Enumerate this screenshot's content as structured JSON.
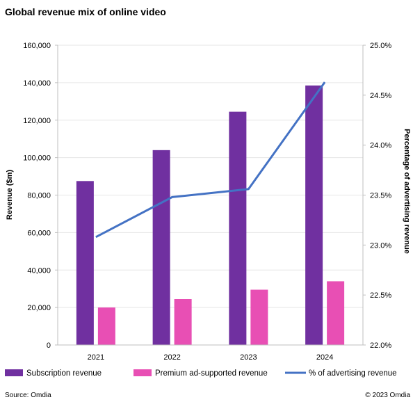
{
  "chart_data": {
    "type": "bar",
    "title": "Global revenue mix of online video",
    "categories": [
      "2021",
      "2022",
      "2023",
      "2024"
    ],
    "series": [
      {
        "name": "Subscription revenue",
        "type": "bar",
        "axis": "left",
        "color": "#7030a0",
        "values": [
          87500,
          104000,
          124500,
          138500
        ]
      },
      {
        "name": "Premium ad-supported revenue",
        "type": "bar",
        "axis": "left",
        "color": "#e84fb4",
        "values": [
          20000,
          24500,
          29500,
          34000
        ]
      },
      {
        "name": "% of advertising revenue",
        "type": "line",
        "axis": "right",
        "color": "#4472c4",
        "values": [
          23.08,
          23.48,
          23.56,
          24.63
        ]
      }
    ],
    "ylabel": "Revenue ($m)",
    "ylim": [
      0,
      160000
    ],
    "yticks": [
      0,
      20000,
      40000,
      60000,
      80000,
      100000,
      120000,
      140000,
      160000
    ],
    "ytick_labels": [
      "0",
      "20,000",
      "40,000",
      "60,000",
      "80,000",
      "100,000",
      "120,000",
      "140,000",
      "160,000"
    ],
    "y2label": "Percentage of advertising revenue",
    "y2lim": [
      22.0,
      25.0
    ],
    "y2ticks": [
      22.0,
      22.5,
      23.0,
      23.5,
      24.0,
      24.5,
      25.0
    ],
    "y2tick_labels": [
      "22.0%",
      "22.5%",
      "23.0%",
      "23.5%",
      "24.0%",
      "24.5%",
      "25.0%"
    ],
    "grid": true,
    "legend": "bottom"
  },
  "footer": {
    "source": "Source: Omdia",
    "copyright": "© 2023 Omdia"
  }
}
